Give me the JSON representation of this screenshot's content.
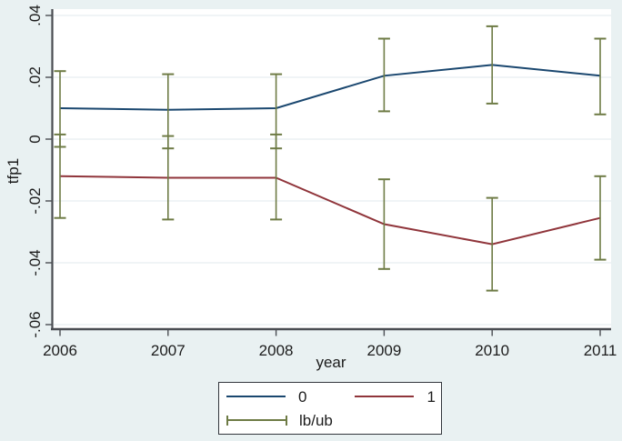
{
  "figure": {
    "background_color": "#e9f1f2",
    "plot_background_color": "#ffffff",
    "grid_color": "#e6edf0",
    "axis_color": "#4a4d52",
    "text_color": "#1c1c1c"
  },
  "chart_data": {
    "type": "line",
    "xlabel": "year",
    "ylabel": "tfp1",
    "x": [
      2006,
      2007,
      2008,
      2009,
      2010,
      2011
    ],
    "x_tick_labels": [
      "2006",
      "2007",
      "2008",
      "2009",
      "2010",
      "2011"
    ],
    "y_ticks": [
      0.04,
      0.02,
      0,
      -0.02,
      -0.04,
      -0.06
    ],
    "y_tick_labels": [
      ".04",
      ".02",
      "0",
      "-.02",
      "-.04",
      "-.06"
    ],
    "ylim": [
      -0.0615,
      0.042
    ],
    "grid": "horizontal",
    "legend_position": "bottom",
    "series": [
      {
        "name": "0",
        "color": "#1a476f",
        "values": [
          0.01,
          0.0095,
          0.01,
          0.0205,
          0.024,
          0.0205
        ],
        "lb": [
          -0.0025,
          -0.003,
          -0.003,
          0.009,
          0.0115,
          0.008
        ],
        "ub": [
          0.022,
          0.021,
          0.021,
          0.0325,
          0.0365,
          0.0325
        ]
      },
      {
        "name": "1",
        "color": "#90353b",
        "values": [
          -0.012,
          -0.0125,
          -0.0125,
          -0.0275,
          -0.034,
          -0.0255
        ],
        "lb": [
          -0.0255,
          -0.026,
          -0.026,
          -0.042,
          -0.049,
          -0.039
        ],
        "ub": [
          0.0015,
          0.001,
          0.0015,
          -0.013,
          -0.019,
          -0.012
        ]
      }
    ],
    "error_bars": {
      "label": "lb/ub",
      "color": "#6e7b45"
    }
  }
}
